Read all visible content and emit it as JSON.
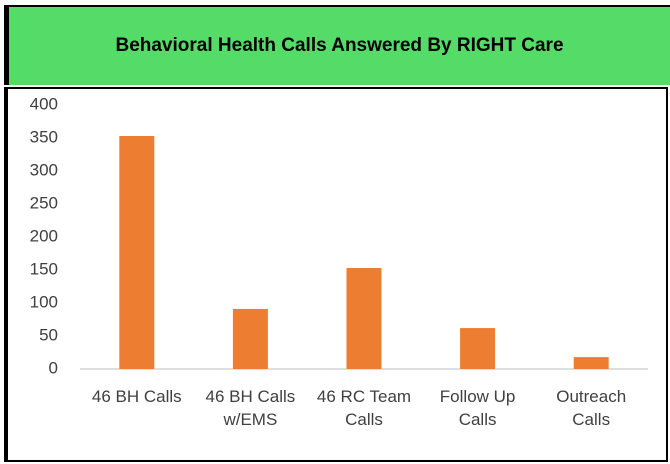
{
  "chart_data": {
    "type": "bar",
    "title": "Behavioral Health Calls Answered By RIGHT Care",
    "categories": [
      "46 BH Calls",
      "46 BH Calls w/EMS",
      "46 RC Team Calls",
      "Follow Up Calls",
      "Outreach Calls"
    ],
    "values": [
      353,
      91,
      153,
      62,
      18
    ],
    "color": "#ed7d31",
    "ylim": [
      0,
      400
    ],
    "yticks": [
      0,
      50,
      100,
      150,
      200,
      250,
      300,
      350,
      400
    ],
    "grid": false
  }
}
